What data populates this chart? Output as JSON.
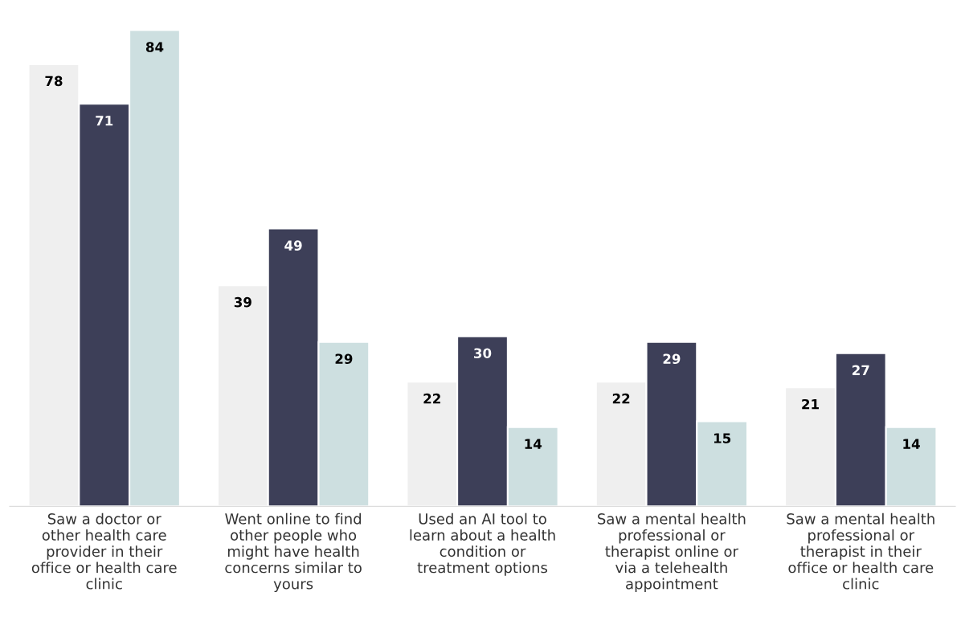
{
  "chart_data": {
    "type": "bar",
    "categories": [
      "Saw a doctor or\nother health care\nprovider in their\noffice or health care\nclinic",
      "Went online to find\nother people who\nmight have health\nconcerns similar to\nyours",
      "Used an AI tool to\nlearn about a health\ncondition or\ntreatment options",
      "Saw a mental health\nprofessional or\ntherapist online or\nvia a telehealth\nappointment",
      "Saw a mental health\nprofessional or\ntherapist in their\noffice or health care\nclinic"
    ],
    "series": [
      {
        "color": "#efefef",
        "values": [
          78,
          39,
          22,
          22,
          21
        ]
      },
      {
        "color": "#3d3f58",
        "values": [
          71,
          49,
          30,
          29,
          27
        ]
      },
      {
        "color": "#cddfe0",
        "values": [
          84,
          29,
          14,
          15,
          14
        ]
      }
    ],
    "data_labels": true,
    "tick_labels": "x",
    "grid": false,
    "legend": false
  }
}
